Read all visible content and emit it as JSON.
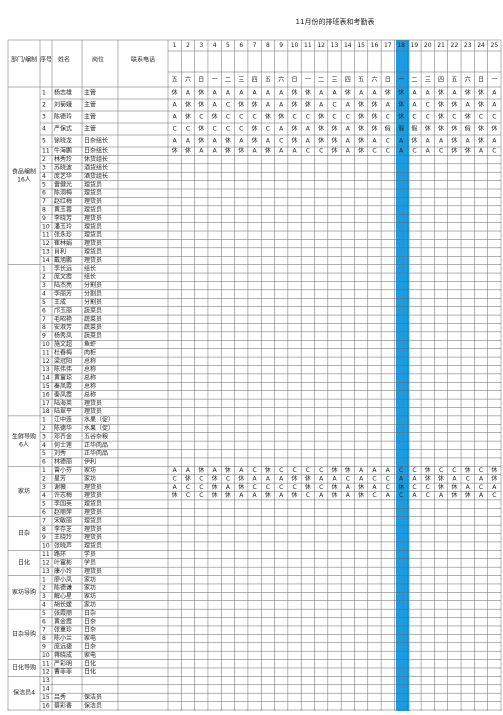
{
  "title": "11月份的排班表和考勤表",
  "header": {
    "dept": "部门/编制",
    "seq": "序号",
    "name": "姓名",
    "post": "岗位",
    "phone": "联系电话"
  },
  "days": [
    1,
    2,
    3,
    4,
    5,
    6,
    7,
    8,
    9,
    10,
    11,
    12,
    13,
    14,
    15,
    16,
    17,
    18,
    19,
    20,
    21,
    22,
    23,
    24,
    25
  ],
  "weekdays": [
    "五",
    "六",
    "日",
    "一",
    "二",
    "三",
    "四",
    "五",
    "六",
    "日",
    "一",
    "二",
    "三",
    "四",
    "五",
    "六",
    "日",
    "一",
    "二",
    "三",
    "四",
    "五",
    "六",
    "日",
    "一"
  ],
  "sections": [
    {
      "label": [
        "食品编制",
        "16人"
      ],
      "rows": [
        {
          "seq": 1,
          "name": "杨志雄",
          "post": "主管",
          "shifts": [
            "休",
            "A",
            "休",
            "A",
            "A",
            "A",
            "A",
            "A",
            "A",
            "休",
            "休",
            "A",
            "A",
            "休",
            "A",
            "A",
            "休",
            "休",
            "A",
            "A",
            "休",
            "A",
            "休",
            "休",
            "A"
          ]
        },
        {
          "seq": 2,
          "name": "刘菊娥",
          "post": "主管",
          "shifts": [
            "A",
            "休",
            "休",
            "A",
            "C",
            "休",
            "休",
            "A",
            "A",
            "休",
            "休",
            "A",
            "C",
            "A",
            "休",
            "休",
            "A",
            "休",
            "A",
            "C",
            "休",
            "休",
            "A",
            "休",
            "A"
          ]
        },
        {
          "seq": 3,
          "name": "陈德玲",
          "post": "主管",
          "shifts": [
            "A",
            "休",
            "C",
            "休",
            "C",
            "C",
            "C",
            "休",
            "休",
            "C",
            "C",
            "休",
            "C",
            "C",
            "休",
            "休",
            "C",
            "休",
            "C",
            "C",
            "休",
            "C",
            "休",
            "C",
            "C"
          ]
        },
        {
          "seq": 4,
          "name": "严保式",
          "post": "主管",
          "shifts": [
            "C",
            "C",
            "休",
            "C",
            "C",
            "C",
            "休",
            "C",
            "A",
            "休",
            "A",
            "休",
            "休",
            "A",
            "休",
            "休",
            "假",
            "假",
            "假",
            "休",
            "休",
            "休",
            "假",
            "休",
            "休"
          ]
        },
        {
          "seq": 5,
          "name": "徐晓龙",
          "post": "日杂组长",
          "shifts": [
            "A",
            "A",
            "休",
            "A",
            "休",
            "A",
            "休",
            "A",
            "C",
            "休",
            "A",
            "休",
            "休",
            "A",
            "休",
            "A",
            "C",
            "A",
            "休",
            "A",
            "A",
            "休",
            "A",
            "休",
            "A"
          ]
        },
        {
          "seq": 11,
          "name": "牛海鹏",
          "post": "日杂组长",
          "shifts": [
            "休",
            "休",
            "A",
            "A",
            "休",
            "休",
            "A",
            "休",
            "A",
            "A",
            "C",
            "C",
            "休",
            "A",
            "休",
            "C",
            "C",
            "A",
            "C",
            "A",
            "C",
            "休",
            "休",
            "A",
            "C"
          ]
        },
        {
          "seq": 2,
          "name": "林秀玲",
          "post": "休货组长"
        },
        {
          "seq": 3,
          "name": "苏晓波",
          "post": "酒货组长"
        },
        {
          "seq": 4,
          "name": "庞艺华",
          "post": "酒货组长"
        },
        {
          "seq": 5,
          "name": "雷健光",
          "post": "理货员"
        },
        {
          "seq": 6,
          "name": "陈洞梅",
          "post": "理货员"
        },
        {
          "seq": 7,
          "name": "赵红梅",
          "post": "理货员"
        },
        {
          "seq": 8,
          "name": "黄玉蓉",
          "post": "理货员"
        },
        {
          "seq": 9,
          "name": "李晓芳",
          "post": "理货员"
        },
        {
          "seq": 10,
          "name": "潘玉玲",
          "post": "理货员"
        },
        {
          "seq": 11,
          "name": "张永珍",
          "post": "理货员"
        },
        {
          "seq": 12,
          "name": "崔林娟",
          "post": "理货员"
        },
        {
          "seq": 13,
          "name": "肖利",
          "post": "理货员"
        },
        {
          "seq": 14,
          "name": "戴旭鹏",
          "post": "理货员"
        }
      ]
    },
    {
      "rows": [
        {
          "seq": 1,
          "name": "李长远",
          "post": "组长"
        },
        {
          "seq": 2,
          "name": "庞文霞",
          "post": "组长"
        },
        {
          "seq": 3,
          "name": "陆杰亮",
          "post": "分割员"
        },
        {
          "seq": 4,
          "name": "李丽芳",
          "post": "分割员"
        },
        {
          "seq": 5,
          "name": "王成",
          "post": "分割员"
        },
        {
          "seq": 6,
          "name": "邝玉丽",
          "post": "蔬菜员"
        },
        {
          "seq": 7,
          "name": "毛昭艳",
          "post": "蔬菜员"
        },
        {
          "seq": 8,
          "name": "安淑芳",
          "post": "蔬菜员"
        },
        {
          "seq": 9,
          "name": "杨秀凤",
          "post": "蔬菜员"
        },
        {
          "seq": 10,
          "name": "施文超",
          "post": "鱼虾"
        },
        {
          "seq": 11,
          "name": "杜春梅",
          "post": "肉柜"
        },
        {
          "seq": 12,
          "name": "梁冠阳",
          "post": "总称"
        },
        {
          "seq": 13,
          "name": "陈伟伟",
          "post": "总称"
        },
        {
          "seq": 14,
          "name": "黄富琼",
          "post": "总称"
        },
        {
          "seq": 15,
          "name": "秦凤霞",
          "post": "总称"
        },
        {
          "seq": 16,
          "name": "秦凤霞",
          "post": "总称"
        },
        {
          "seq": 17,
          "name": "陆海英",
          "post": "理货员"
        },
        {
          "seq": 18,
          "name": "陆翠平",
          "post": "理货员"
        }
      ]
    },
    {
      "label": [
        "生鲜导购",
        "6人"
      ],
      "rows": [
        {
          "seq": 1,
          "name": "江中连",
          "post": "水果（促）"
        },
        {
          "seq": 2,
          "name": "陈德华",
          "post": "水果（促）"
        },
        {
          "seq": 3,
          "name": "邓齐金",
          "post": "五谷杂粮"
        },
        {
          "seq": 4,
          "name": "何士莲",
          "post": "正华肉品"
        },
        {
          "seq": 5,
          "name": "刘秀",
          "post": "正华肉品"
        },
        {
          "seq": 6,
          "name": "林德丽",
          "post": "伊利"
        }
      ]
    },
    {
      "label": [
        "家坊"
      ],
      "rows": [
        {
          "seq": 1,
          "name": "曾小芬",
          "post": "家坊",
          "shifts": [
            "A",
            "A",
            "休",
            "A",
            "休",
            "A",
            "C",
            "休",
            "C",
            "C",
            "C",
            "C",
            "休",
            "休",
            "A",
            "A",
            "A",
            "C",
            "C",
            "休",
            "C",
            "C",
            "休",
            "C",
            "休"
          ]
        },
        {
          "seq": 2,
          "name": "星芳",
          "post": "家坊",
          "shifts": [
            "C",
            "休",
            "C",
            "休",
            "C",
            "休",
            "A",
            "A",
            "A",
            "休",
            "休",
            "A",
            "A",
            "C",
            "A",
            "C",
            "C",
            "A",
            "A",
            "休",
            "休",
            "A",
            "C",
            "A",
            "休"
          ]
        },
        {
          "seq": 3,
          "name": "谢薇",
          "post": "理货员",
          "shifts": [
            "A",
            "C",
            "C",
            "休",
            "A",
            "休",
            "C",
            "C",
            "C",
            "C",
            "休",
            "C",
            "休",
            "A",
            "休",
            "A",
            "C",
            "休",
            "C",
            "C",
            "休",
            "休",
            "A",
            "C",
            "A"
          ]
        },
        {
          "seq": 4,
          "name": "许志梅",
          "post": "理货员",
          "shifts": [
            "休",
            "C",
            "C",
            "休",
            "休",
            "A",
            "A",
            "休",
            "A",
            "休",
            "C",
            "A",
            "休",
            "A",
            "休",
            "C",
            "A",
            "C",
            "A",
            "C",
            "A",
            "休",
            "休",
            "A",
            "C"
          ]
        },
        {
          "seq": 5,
          "name": "李国英",
          "post": "理货员"
        },
        {
          "seq": 6,
          "name": "赵丽萍",
          "post": "理货员"
        }
      ]
    },
    {
      "label": [
        "日杂"
      ],
      "rows": [
        {
          "seq": 7,
          "name": "宋敏丽",
          "post": "理货员"
        },
        {
          "seq": 8,
          "name": "李存芝",
          "post": "理货员"
        },
        {
          "seq": 9,
          "name": "王晓玲",
          "post": "理货员"
        },
        {
          "seq": 10,
          "name": "张晓声",
          "post": "理货员"
        }
      ]
    },
    {
      "label": [
        "日化"
      ],
      "rows": [
        {
          "seq": 11,
          "name": "路环",
          "post": "学员"
        },
        {
          "seq": 12,
          "name": "叶富彬",
          "post": "学员"
        },
        {
          "seq": 13,
          "name": "康小玲",
          "post": "理货员"
        }
      ]
    },
    {
      "label": [
        "家坊导购"
      ],
      "rows": [
        {
          "seq": 1,
          "name": "廖小凤",
          "post": "家坊"
        },
        {
          "seq": 2,
          "name": "陈德谦",
          "post": "家坊"
        },
        {
          "seq": 3,
          "name": "解心星",
          "post": "家坊"
        },
        {
          "seq": 4,
          "name": "胡长媛",
          "post": "家坊"
        }
      ]
    },
    {
      "label": [
        "日杂导购"
      ],
      "rows": [
        {
          "seq": 5,
          "name": "张霞丽",
          "post": "日杂"
        },
        {
          "seq": 6,
          "name": "黄金霞",
          "post": "日杂"
        },
        {
          "seq": 7,
          "name": "张重珍",
          "post": "日杂"
        },
        {
          "seq": 8,
          "name": "陈小兰",
          "post": "家电"
        },
        {
          "seq": 9,
          "name": "庞远捷",
          "post": "日杂"
        },
        {
          "seq": 10,
          "name": "蒋晓成",
          "post": "家电"
        }
      ]
    },
    {
      "label": [
        "日化导购"
      ],
      "rows": [
        {
          "seq": 11,
          "name": "严彩明",
          "post": "日化"
        },
        {
          "seq": 12,
          "name": "曹菲菲",
          "post": "日化"
        }
      ]
    },
    {
      "label": [
        "保洁员4"
      ],
      "rows": [
        {
          "seq": 13
        },
        {
          "seq": 14
        },
        {
          "seq": 15,
          "name": "吕秀",
          "post": "保洁员"
        },
        {
          "seq": 16,
          "name": "蔡彩香",
          "post": "保洁员"
        }
      ]
    }
  ]
}
